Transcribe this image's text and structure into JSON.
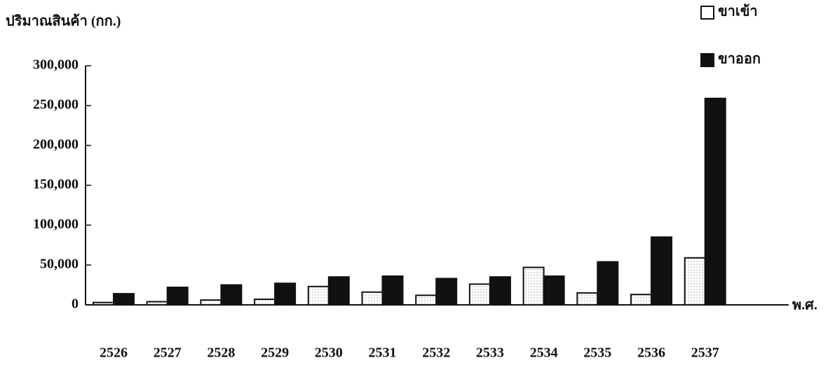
{
  "chart_data": {
    "type": "bar",
    "y_label": "ปริมาณสินค้า (กก.)",
    "x_label": "พ.ศ.",
    "categories": [
      "2526",
      "2527",
      "2528",
      "2529",
      "2530",
      "2531",
      "2532",
      "2533",
      "2534",
      "2535",
      "2536",
      "2537"
    ],
    "series": [
      {
        "name": "ขาเข้า",
        "color": "#ffffff",
        "values": [
          3000,
          4000,
          6000,
          7000,
          23000,
          16000,
          12000,
          26000,
          47000,
          15000,
          13000,
          59000
        ]
      },
      {
        "name": "ขาออก",
        "color": "#111111",
        "values": [
          14000,
          22000,
          25000,
          27000,
          35000,
          36000,
          33000,
          35000,
          36000,
          54000,
          85000,
          259000
        ]
      }
    ],
    "ylim": [
      0,
      300000
    ],
    "yticks": [
      0,
      {
        "value": 50000,
        "label": "50,000"
      },
      {
        "value": 100000,
        "label": "100,000"
      },
      {
        "value": 150000,
        "label": "150,000"
      },
      {
        "value": 200000,
        "label": "200,000"
      },
      {
        "value": 250000,
        "label": "250,000"
      },
      {
        "value": 300000,
        "label": "300,000"
      }
    ],
    "legend": "top-right",
    "grid": false
  }
}
